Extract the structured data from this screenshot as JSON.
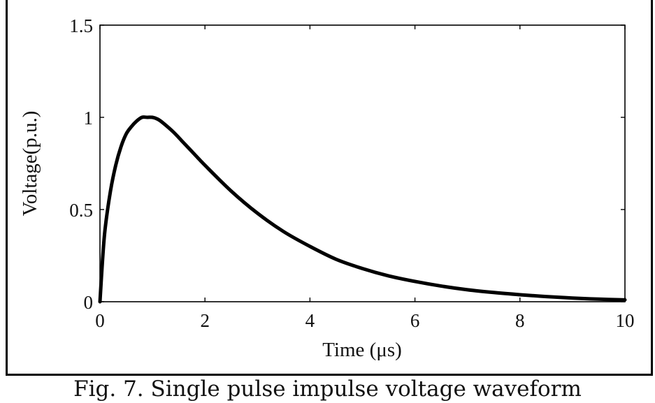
{
  "caption": "Fig. 7. Single pulse impulse voltage waveform",
  "chart_data": {
    "type": "line",
    "title": "",
    "xlabel": "Time (μs)",
    "ylabel": "Voltage(p.u.)",
    "xlim": [
      0,
      10
    ],
    "ylim": [
      0,
      1.5
    ],
    "x_ticks": [
      0,
      2,
      4,
      6,
      8,
      10
    ],
    "x_tick_labels": [
      "0",
      "2",
      "4",
      "6",
      "8",
      "10"
    ],
    "y_ticks": [
      0,
      0.5,
      1,
      1.5
    ],
    "y_tick_labels": [
      "0",
      "0.5",
      "1",
      "1.5"
    ],
    "grid": false,
    "line_color": "#000000",
    "series": [
      {
        "x": [
          0,
          0.05,
          0.1,
          0.2,
          0.3,
          0.4,
          0.5,
          0.6,
          0.7,
          0.8,
          0.9,
          1.0,
          1.1,
          1.2,
          1.4,
          1.6,
          1.8,
          2.0,
          2.5,
          3.0,
          3.5,
          4.0,
          4.5,
          5.0,
          5.5,
          6.0,
          6.5,
          7.0,
          7.5,
          8.0,
          8.5,
          9.0,
          9.5,
          10.0
        ],
        "y": [
          0,
          0.23,
          0.4,
          0.6,
          0.74,
          0.84,
          0.91,
          0.95,
          0.98,
          1.0,
          1.0,
          1.0,
          0.99,
          0.97,
          0.92,
          0.86,
          0.8,
          0.74,
          0.6,
          0.48,
          0.38,
          0.3,
          0.23,
          0.18,
          0.14,
          0.11,
          0.085,
          0.065,
          0.05,
          0.038,
          0.028,
          0.02,
          0.014,
          0.01
        ]
      }
    ]
  }
}
